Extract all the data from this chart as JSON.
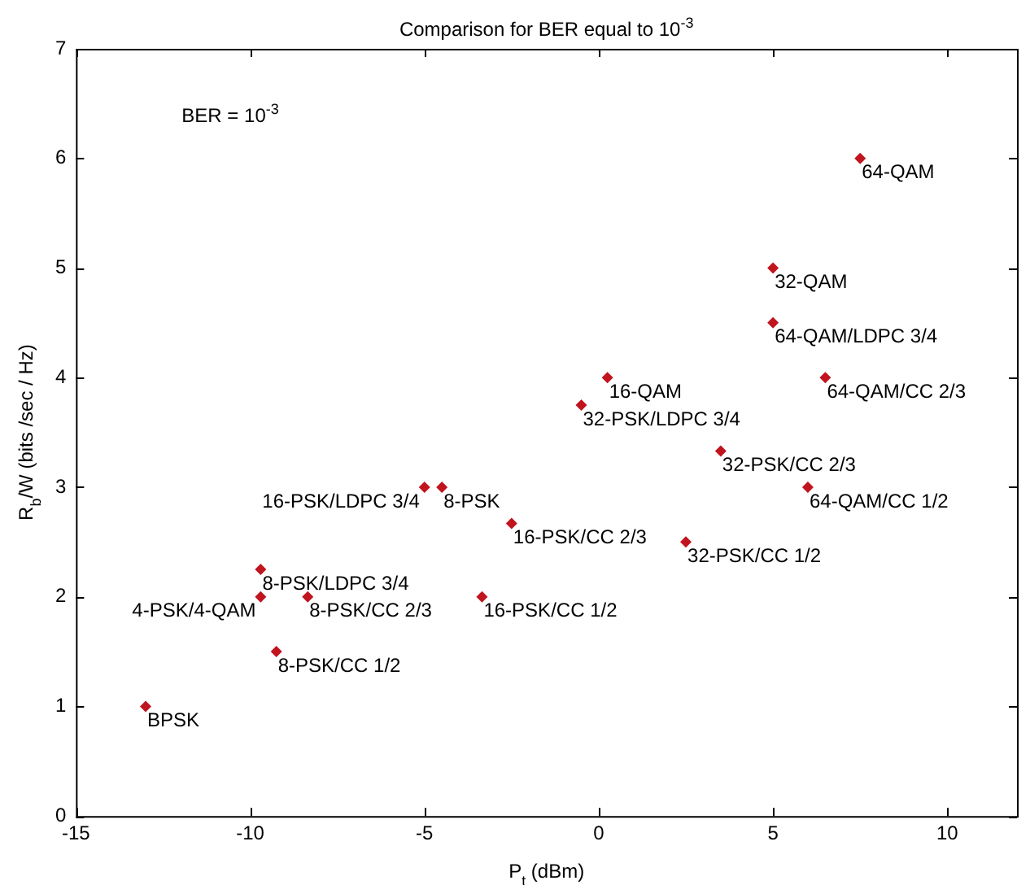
{
  "chart_data": {
    "type": "scatter",
    "title": "Comparison for BER equal to 10$^{-3}$",
    "xlabel": "P$_{t}$ (dBm)",
    "ylabel": "R$_{b}$/W (bits /sec / Hz)",
    "x": [
      -13,
      -9.7,
      -9.25,
      -9.7,
      -8.35,
      -5,
      -4.5,
      -3.35,
      -2.5,
      -0.5,
      0.25,
      2.5,
      3.5,
      5,
      5,
      6,
      6.5,
      7.5
    ],
    "series": [
      {
        "color": "#c0141e",
        "values": [
          1,
          2,
          1.5,
          2.25,
          2,
          3,
          3,
          2,
          2.67,
          3.75,
          4,
          2.5,
          3.33,
          4.5,
          5,
          3,
          4,
          6
        ]
      }
    ],
    "marker": "diamond",
    "grid": false,
    "legend": false,
    "xlim": [
      -15,
      12
    ],
    "xticks": [
      -15,
      -10,
      -5,
      0,
      5,
      10
    ],
    "ylim": [
      0,
      7
    ],
    "yticks": [
      0,
      1,
      2,
      3,
      4,
      5,
      6,
      7
    ],
    "annotations": [
      "BER = 10$^{-3}$",
      {
        "text": "BPSK",
        "x": -13,
        "y": 1
      },
      {
        "text": "4-PSK/4-QAM",
        "x": -9.7,
        "y": 2
      },
      {
        "text": "8-PSK/CC 1/2",
        "x": -9.25,
        "y": 1.5
      },
      {
        "text": "8-PSK/LDPC 3/4",
        "x": -9.7,
        "y": 2.25
      },
      {
        "text": "8-PSK/CC 2/3",
        "x": -8.35,
        "y": 2
      },
      {
        "text": "16-PSK/LDPC 3/4",
        "x": -5,
        "y": 3
      },
      {
        "text": "8-PSK",
        "x": -4.5,
        "y": 3
      },
      {
        "text": "16-PSK/CC 1/2",
        "x": -3.35,
        "y": 2
      },
      {
        "text": "16-PSK/CC 2/3",
        "x": -2.5,
        "y": 2.67
      },
      {
        "text": "32-PSK/LDPC 3/4",
        "x": -0.5,
        "y": 3.75
      },
      {
        "text": "16-QAM",
        "x": 0.25,
        "y": 4
      },
      {
        "text": "32-PSK/CC 1/2",
        "x": 2.5,
        "y": 2.5
      },
      {
        "text": "32-PSK/CC 2/3",
        "x": 3.5,
        "y": 3.33
      },
      {
        "text": "64-QAM/LDPC 3/4",
        "x": 5,
        "y": 4.5
      },
      {
        "text": "32-QAM",
        "x": 5,
        "y": 5
      },
      {
        "text": "64-QAM/CC 1/2",
        "x": 6,
        "y": 3
      },
      {
        "text": "64-QAM/CC 2/3",
        "x": 6.5,
        "y": 4
      },
      {
        "text": "64-QAM",
        "x": 7.5,
        "y": 6
      }
    ]
  }
}
